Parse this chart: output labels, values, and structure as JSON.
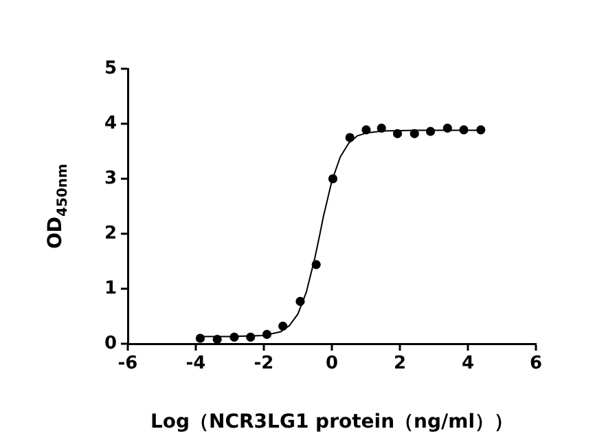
{
  "chart_data": {
    "type": "scatter",
    "xlabel": "Log（NCR3LG1 protein（ng/ml））",
    "ylabel": "OD$_{450nm}$",
    "xlim": [
      -6,
      6
    ],
    "xticks": [
      -6,
      -4,
      -2,
      0,
      2,
      4,
      6
    ],
    "ylim": [
      0,
      5
    ],
    "yticks": [
      0,
      1,
      2,
      3,
      4,
      5
    ],
    "grid": false,
    "legend": false,
    "series": [
      {
        "type": "scatter",
        "marker": "circle",
        "color": "#000000",
        "x": [
          -3.87,
          -3.37,
          -2.87,
          -2.39,
          -1.91,
          -1.44,
          -0.93,
          -0.46,
          0.03,
          0.53,
          1.01,
          1.46,
          1.93,
          2.43,
          2.9,
          3.4,
          3.88,
          4.38
        ],
        "values": [
          0.1,
          0.08,
          0.12,
          0.12,
          0.17,
          0.32,
          0.77,
          1.44,
          3.0,
          3.75,
          3.89,
          3.92,
          3.82,
          3.82,
          3.86,
          3.92,
          3.89,
          3.89
        ]
      },
      {
        "type": "line",
        "marker": "none",
        "line_style": "solid",
        "color": "#000000",
        "x": [
          -3.9,
          -3,
          -2,
          -1.5,
          -1.25,
          -1,
          -0.75,
          -0.5,
          -0.35,
          -0.25,
          0,
          0.25,
          0.5,
          0.75,
          1,
          1.5,
          2.5,
          4.4
        ],
        "values": [
          0.13,
          0.13,
          0.15,
          0.22,
          0.33,
          0.54,
          0.94,
          1.56,
          2.0,
          2.31,
          2.96,
          3.4,
          3.65,
          3.78,
          3.83,
          3.87,
          3.88,
          3.88
        ]
      }
    ]
  }
}
